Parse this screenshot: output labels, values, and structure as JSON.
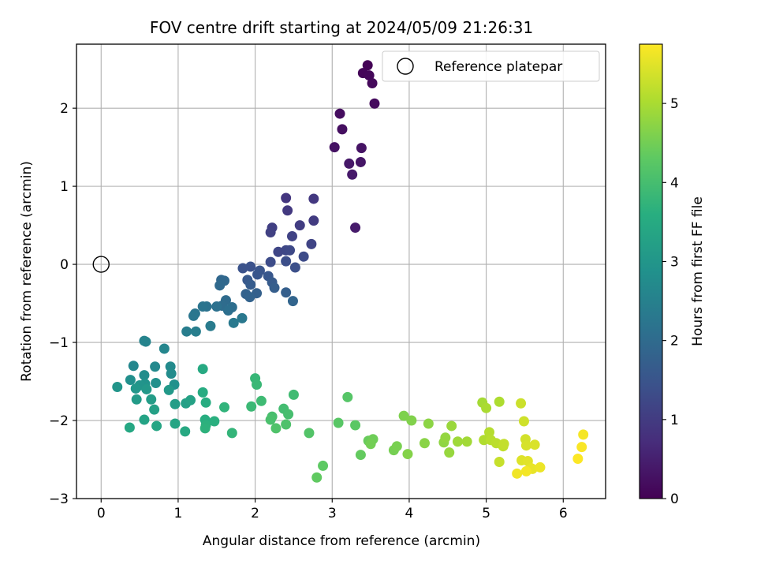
{
  "chart_data": {
    "type": "scatter",
    "title": "FOV centre drift starting at 2024/05/09 21:26:31",
    "xlabel": "Angular distance from reference (arcmin)",
    "ylabel": "Rotation from reference (arcmin)",
    "xlim": [
      -0.32,
      6.55
    ],
    "ylim": [
      -3.0,
      2.82
    ],
    "xticks": [
      0,
      1,
      2,
      3,
      4,
      5,
      6
    ],
    "yticks": [
      -3,
      -2,
      -1,
      0,
      1,
      2
    ],
    "grid": true,
    "legend": {
      "position": "top-right",
      "entries": [
        "Reference platepar"
      ]
    },
    "colorbar": {
      "label": "Hours from first FF file",
      "ticks": [
        0,
        1,
        2,
        3,
        4,
        5
      ],
      "range": [
        0,
        5.75
      ],
      "colormap": "viridis"
    },
    "reference_point": {
      "x": 0,
      "y": 0
    },
    "points": [
      {
        "x": 3.46,
        "y": 2.55,
        "h": 0.03
      },
      {
        "x": 3.4,
        "y": 2.45,
        "h": 0.07
      },
      {
        "x": 3.48,
        "y": 2.42,
        "h": 0.1
      },
      {
        "x": 3.52,
        "y": 2.32,
        "h": 0.13
      },
      {
        "x": 3.55,
        "y": 2.06,
        "h": 0.16
      },
      {
        "x": 3.1,
        "y": 1.93,
        "h": 0.2
      },
      {
        "x": 3.13,
        "y": 1.73,
        "h": 0.23
      },
      {
        "x": 3.03,
        "y": 1.5,
        "h": 0.27
      },
      {
        "x": 3.38,
        "y": 1.49,
        "h": 0.3
      },
      {
        "x": 3.37,
        "y": 1.31,
        "h": 0.33
      },
      {
        "x": 3.22,
        "y": 1.29,
        "h": 0.37
      },
      {
        "x": 3.26,
        "y": 1.15,
        "h": 0.4
      },
      {
        "x": 3.3,
        "y": 0.47,
        "h": 0.43
      },
      {
        "x": 2.4,
        "y": 0.85,
        "h": 0.9
      },
      {
        "x": 2.76,
        "y": 0.84,
        "h": 0.93
      },
      {
        "x": 2.42,
        "y": 0.69,
        "h": 0.96
      },
      {
        "x": 2.76,
        "y": 0.56,
        "h": 1.0
      },
      {
        "x": 2.58,
        "y": 0.5,
        "h": 1.03
      },
      {
        "x": 2.22,
        "y": 0.47,
        "h": 1.06
      },
      {
        "x": 2.2,
        "y": 0.41,
        "h": 1.1
      },
      {
        "x": 2.48,
        "y": 0.36,
        "h": 1.13
      },
      {
        "x": 2.73,
        "y": 0.26,
        "h": 1.16
      },
      {
        "x": 2.3,
        "y": 0.16,
        "h": 1.2
      },
      {
        "x": 2.4,
        "y": 0.18,
        "h": 1.23
      },
      {
        "x": 2.45,
        "y": 0.18,
        "h": 1.26
      },
      {
        "x": 2.63,
        "y": 0.1,
        "h": 1.3
      },
      {
        "x": 2.2,
        "y": 0.03,
        "h": 1.33
      },
      {
        "x": 2.4,
        "y": 0.04,
        "h": 1.36
      },
      {
        "x": 2.52,
        "y": -0.04,
        "h": 1.4
      },
      {
        "x": 1.94,
        "y": -0.03,
        "h": 1.43
      },
      {
        "x": 1.84,
        "y": -0.05,
        "h": 1.46
      },
      {
        "x": 2.06,
        "y": -0.08,
        "h": 1.5
      },
      {
        "x": 2.03,
        "y": -0.13,
        "h": 1.53
      },
      {
        "x": 2.17,
        "y": -0.15,
        "h": 1.56
      },
      {
        "x": 1.9,
        "y": -0.2,
        "h": 1.6
      },
      {
        "x": 2.22,
        "y": -0.23,
        "h": 1.63
      },
      {
        "x": 1.94,
        "y": -0.26,
        "h": 1.66
      },
      {
        "x": 2.25,
        "y": -0.3,
        "h": 1.7
      },
      {
        "x": 2.4,
        "y": -0.36,
        "h": 1.73
      },
      {
        "x": 2.02,
        "y": -0.37,
        "h": 1.76
      },
      {
        "x": 1.88,
        "y": -0.38,
        "h": 1.8
      },
      {
        "x": 1.93,
        "y": -0.42,
        "h": 1.83
      },
      {
        "x": 2.49,
        "y": -0.47,
        "h": 1.86
      },
      {
        "x": 1.56,
        "y": -0.2,
        "h": 1.9
      },
      {
        "x": 1.6,
        "y": -0.21,
        "h": 1.93
      },
      {
        "x": 1.54,
        "y": -0.27,
        "h": 1.96
      },
      {
        "x": 1.62,
        "y": -0.46,
        "h": 2.0
      },
      {
        "x": 1.57,
        "y": -0.53,
        "h": 2.03
      },
      {
        "x": 1.7,
        "y": -0.55,
        "h": 2.06
      },
      {
        "x": 1.65,
        "y": -0.59,
        "h": 2.1
      },
      {
        "x": 1.5,
        "y": -0.54,
        "h": 2.13
      },
      {
        "x": 1.37,
        "y": -0.54,
        "h": 2.16
      },
      {
        "x": 1.32,
        "y": -0.54,
        "h": 2.2
      },
      {
        "x": 1.22,
        "y": -0.63,
        "h": 2.23
      },
      {
        "x": 1.2,
        "y": -0.66,
        "h": 2.26
      },
      {
        "x": 1.83,
        "y": -0.69,
        "h": 2.3
      },
      {
        "x": 1.72,
        "y": -0.75,
        "h": 2.33
      },
      {
        "x": 1.42,
        "y": -0.79,
        "h": 2.36
      },
      {
        "x": 1.11,
        "y": -0.86,
        "h": 2.4
      },
      {
        "x": 1.23,
        "y": -0.86,
        "h": 2.43
      },
      {
        "x": 0.56,
        "y": -0.98,
        "h": 2.55
      },
      {
        "x": 0.58,
        "y": -0.99,
        "h": 2.58
      },
      {
        "x": 0.82,
        "y": -1.08,
        "h": 2.62
      },
      {
        "x": 0.42,
        "y": -1.3,
        "h": 2.65
      },
      {
        "x": 0.7,
        "y": -1.31,
        "h": 2.68
      },
      {
        "x": 0.9,
        "y": -1.31,
        "h": 2.72
      },
      {
        "x": 0.91,
        "y": -1.4,
        "h": 2.75
      },
      {
        "x": 0.56,
        "y": -1.42,
        "h": 2.78
      },
      {
        "x": 0.38,
        "y": -1.48,
        "h": 2.82
      },
      {
        "x": 0.71,
        "y": -1.52,
        "h": 2.85
      },
      {
        "x": 0.95,
        "y": -1.54,
        "h": 2.88
      },
      {
        "x": 0.57,
        "y": -1.53,
        "h": 2.92
      },
      {
        "x": 0.5,
        "y": -1.55,
        "h": 2.95
      },
      {
        "x": 0.21,
        "y": -1.57,
        "h": 2.98
      },
      {
        "x": 0.45,
        "y": -1.59,
        "h": 3.02
      },
      {
        "x": 0.59,
        "y": -1.6,
        "h": 3.05
      },
      {
        "x": 0.88,
        "y": -1.61,
        "h": 3.08
      },
      {
        "x": 0.46,
        "y": -1.73,
        "h": 3.12
      },
      {
        "x": 0.65,
        "y": -1.73,
        "h": 3.15
      },
      {
        "x": 0.96,
        "y": -1.79,
        "h": 3.18
      },
      {
        "x": 1.1,
        "y": -1.78,
        "h": 3.22
      },
      {
        "x": 0.69,
        "y": -1.86,
        "h": 3.25
      },
      {
        "x": 1.16,
        "y": -1.74,
        "h": 3.28
      },
      {
        "x": 0.56,
        "y": -1.99,
        "h": 3.32
      },
      {
        "x": 0.96,
        "y": -2.04,
        "h": 3.35
      },
      {
        "x": 0.72,
        "y": -2.07,
        "h": 3.38
      },
      {
        "x": 0.37,
        "y": -2.09,
        "h": 3.42
      },
      {
        "x": 1.09,
        "y": -2.14,
        "h": 3.45
      },
      {
        "x": 1.32,
        "y": -1.34,
        "h": 3.48
      },
      {
        "x": 1.32,
        "y": -1.64,
        "h": 3.52
      },
      {
        "x": 1.36,
        "y": -1.77,
        "h": 3.55
      },
      {
        "x": 1.35,
        "y": -1.99,
        "h": 3.58
      },
      {
        "x": 1.47,
        "y": -2.01,
        "h": 3.62
      },
      {
        "x": 1.36,
        "y": -2.06,
        "h": 3.65
      },
      {
        "x": 1.35,
        "y": -2.1,
        "h": 3.68
      },
      {
        "x": 1.6,
        "y": -1.83,
        "h": 3.72
      },
      {
        "x": 1.7,
        "y": -2.16,
        "h": 3.75
      },
      {
        "x": 2.0,
        "y": -1.46,
        "h": 3.8
      },
      {
        "x": 2.02,
        "y": -1.54,
        "h": 3.83
      },
      {
        "x": 1.95,
        "y": -1.82,
        "h": 3.86
      },
      {
        "x": 2.08,
        "y": -1.75,
        "h": 3.9
      },
      {
        "x": 2.5,
        "y": -1.67,
        "h": 3.93
      },
      {
        "x": 2.37,
        "y": -1.85,
        "h": 3.96
      },
      {
        "x": 2.43,
        "y": -1.92,
        "h": 4.0
      },
      {
        "x": 2.22,
        "y": -1.95,
        "h": 4.03
      },
      {
        "x": 2.2,
        "y": -1.99,
        "h": 4.06
      },
      {
        "x": 2.4,
        "y": -2.05,
        "h": 4.1
      },
      {
        "x": 2.27,
        "y": -2.1,
        "h": 4.13
      },
      {
        "x": 2.7,
        "y": -2.16,
        "h": 4.16
      },
      {
        "x": 3.2,
        "y": -1.7,
        "h": 4.2
      },
      {
        "x": 3.08,
        "y": -2.03,
        "h": 4.23
      },
      {
        "x": 3.3,
        "y": -2.06,
        "h": 4.26
      },
      {
        "x": 2.88,
        "y": -2.58,
        "h": 4.3
      },
      {
        "x": 2.8,
        "y": -2.73,
        "h": 4.33
      },
      {
        "x": 3.37,
        "y": -2.44,
        "h": 4.36
      },
      {
        "x": 3.47,
        "y": -2.26,
        "h": 4.4
      },
      {
        "x": 3.5,
        "y": -2.29,
        "h": 4.43
      },
      {
        "x": 3.53,
        "y": -2.24,
        "h": 4.46
      },
      {
        "x": 3.5,
        "y": -2.3,
        "h": 4.5
      },
      {
        "x": 3.8,
        "y": -2.38,
        "h": 4.53
      },
      {
        "x": 3.84,
        "y": -2.33,
        "h": 4.56
      },
      {
        "x": 3.93,
        "y": -1.94,
        "h": 4.6
      },
      {
        "x": 4.03,
        "y": -2.0,
        "h": 4.63
      },
      {
        "x": 3.98,
        "y": -2.43,
        "h": 4.66
      },
      {
        "x": 4.2,
        "y": -2.29,
        "h": 4.7
      },
      {
        "x": 4.25,
        "y": -2.04,
        "h": 4.73
      },
      {
        "x": 4.45,
        "y": -2.28,
        "h": 4.76
      },
      {
        "x": 4.47,
        "y": -2.22,
        "h": 4.8
      },
      {
        "x": 4.52,
        "y": -2.41,
        "h": 4.83
      },
      {
        "x": 4.55,
        "y": -2.07,
        "h": 4.86
      },
      {
        "x": 4.63,
        "y": -2.27,
        "h": 4.9
      },
      {
        "x": 4.75,
        "y": -2.27,
        "h": 4.93
      },
      {
        "x": 4.95,
        "y": -1.77,
        "h": 4.96
      },
      {
        "x": 5.0,
        "y": -1.84,
        "h": 5.0
      },
      {
        "x": 5.17,
        "y": -1.76,
        "h": 5.03
      },
      {
        "x": 4.97,
        "y": -2.25,
        "h": 5.06
      },
      {
        "x": 5.04,
        "y": -2.15,
        "h": 5.1
      },
      {
        "x": 5.06,
        "y": -2.25,
        "h": 5.13
      },
      {
        "x": 5.13,
        "y": -2.29,
        "h": 5.16
      },
      {
        "x": 5.22,
        "y": -2.33,
        "h": 5.2
      },
      {
        "x": 5.23,
        "y": -2.3,
        "h": 5.23
      },
      {
        "x": 5.17,
        "y": -2.53,
        "h": 5.26
      },
      {
        "x": 5.45,
        "y": -1.78,
        "h": 5.3
      },
      {
        "x": 5.49,
        "y": -2.01,
        "h": 5.33
      },
      {
        "x": 5.51,
        "y": -2.24,
        "h": 5.36
      },
      {
        "x": 5.52,
        "y": -2.32,
        "h": 5.4
      },
      {
        "x": 5.63,
        "y": -2.31,
        "h": 5.43
      },
      {
        "x": 5.46,
        "y": -2.51,
        "h": 5.46
      },
      {
        "x": 5.54,
        "y": -2.52,
        "h": 5.5
      },
      {
        "x": 5.58,
        "y": -2.61,
        "h": 5.53
      },
      {
        "x": 5.6,
        "y": -2.62,
        "h": 5.56
      },
      {
        "x": 5.7,
        "y": -2.6,
        "h": 5.6
      },
      {
        "x": 5.4,
        "y": -2.68,
        "h": 5.63
      },
      {
        "x": 5.52,
        "y": -2.65,
        "h": 5.66
      },
      {
        "x": 6.26,
        "y": -2.18,
        "h": 5.68
      },
      {
        "x": 6.24,
        "y": -2.34,
        "h": 5.71
      },
      {
        "x": 6.19,
        "y": -2.49,
        "h": 5.74
      }
    ]
  }
}
